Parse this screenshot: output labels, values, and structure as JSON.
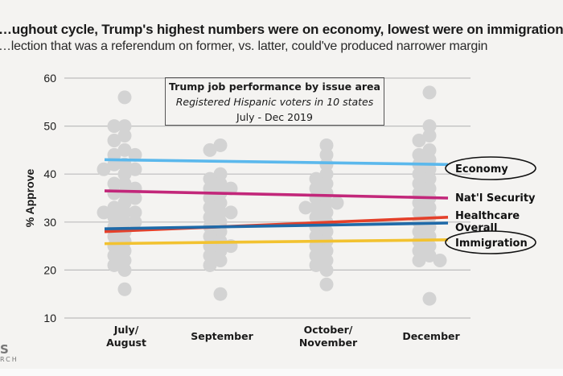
{
  "chart_data": {
    "type": "scatter",
    "title": "…ughout cycle, Trump's highest numbers were on economy, lowest were on immigration",
    "subtitle": "…lection that was a referendum on former, vs. latter, could've produced narrower margin",
    "inset": {
      "title": "Trump job performance by issue area",
      "line2": "Registered Hispanic voters in 10 states",
      "line3": "July - Dec 2019"
    },
    "ylabel": "% Approve",
    "xlabel": "",
    "ylim": [
      10,
      60
    ],
    "yticks": [
      "10",
      "20",
      "30",
      "40",
      "50",
      "60"
    ],
    "grid": true,
    "categories": [
      {
        "label1": "July/",
        "label2": "August"
      },
      {
        "label1": "September",
        "label2": ""
      },
      {
        "label1": "October/",
        "label2": "November"
      },
      {
        "label1": "December",
        "label2": ""
      }
    ],
    "points": [
      [
        56,
        50,
        50,
        48,
        47,
        45,
        44,
        44,
        42,
        42,
        41,
        41,
        40,
        38,
        38,
        37,
        36,
        36,
        35,
        34,
        33,
        32,
        32,
        32,
        31,
        30,
        30,
        29,
        28,
        27,
        26,
        25,
        24,
        23,
        22,
        21,
        20,
        16
      ],
      [
        46,
        45,
        40,
        39,
        38,
        37,
        37,
        36,
        35,
        34,
        33,
        32,
        32,
        31,
        30,
        29,
        28,
        27,
        26,
        25,
        25,
        24,
        23,
        22,
        21,
        15
      ],
      [
        46,
        44,
        42,
        40,
        39,
        38,
        37,
        36,
        35,
        34,
        34,
        33,
        33,
        32,
        31,
        30,
        29,
        28,
        27,
        26,
        25,
        24,
        23,
        22,
        21,
        20,
        17
      ],
      [
        57,
        50,
        48,
        47,
        45,
        44,
        43,
        42,
        41,
        40,
        39,
        38,
        37,
        36,
        35,
        34,
        33,
        32,
        31,
        30,
        29,
        28,
        27,
        26,
        25,
        24,
        23,
        22,
        22,
        14
      ]
    ],
    "point_color": "#d3d3d3",
    "series": [
      {
        "name": "Economy",
        "start": 43.0,
        "end": 42.0,
        "color": "#5bb8ec",
        "circled": true
      },
      {
        "name": "Nat'l Security",
        "start": 36.5,
        "end": 35.0,
        "color": "#c2277a",
        "circled": false
      },
      {
        "name": "Healthcare",
        "start": 28.0,
        "end": 31.0,
        "color": "#e4402a",
        "circled": false
      },
      {
        "name": "Overall",
        "start": 28.6,
        "end": 29.8,
        "color": "#1f6aa8",
        "circled": false
      },
      {
        "name": "Immigration",
        "start": 25.5,
        "end": 26.3,
        "color": "#f2c230",
        "circled": true
      }
    ]
  },
  "logo": {
    "line1": "S",
    "line2": "RCH"
  }
}
